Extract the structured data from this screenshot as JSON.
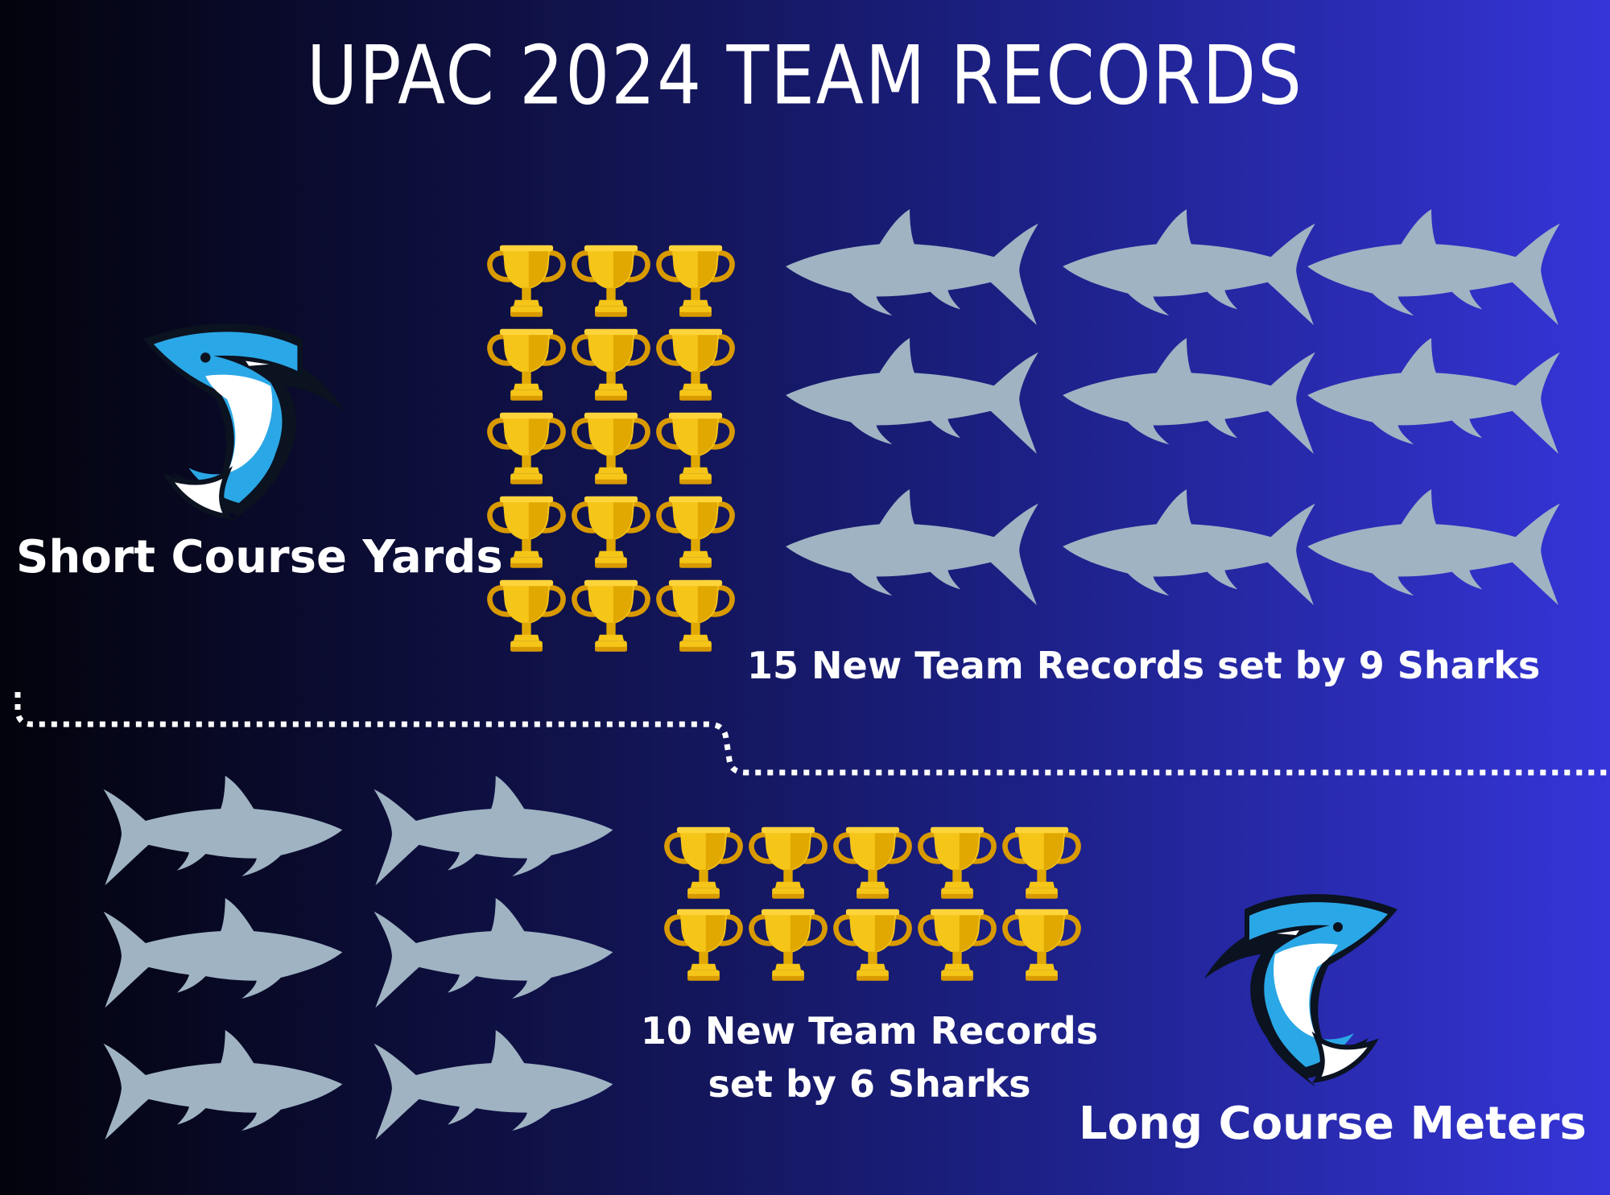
{
  "title": "UPAC 2024 TEAM RECORDS",
  "short_course": {
    "label": "Short Course Yards",
    "caption": "15 New Team Records set by 9 Sharks",
    "records": 15,
    "sharks": 9
  },
  "long_course": {
    "label": "Long Course Meters",
    "caption": "10 New Team Records set by 6 Sharks",
    "records": 10,
    "sharks": 6
  },
  "colors": {
    "trophy": "#f5c518",
    "trophy_shade": "#d99a00",
    "shark_silhouette": "#9fb3c3",
    "divider": "#ffffff",
    "mascot_blue": "#2aa7e6"
  },
  "icons": {
    "trophy": "trophy-icon",
    "shark": "shark-silhouette-icon",
    "mascot": "shark-mascot-logo"
  }
}
